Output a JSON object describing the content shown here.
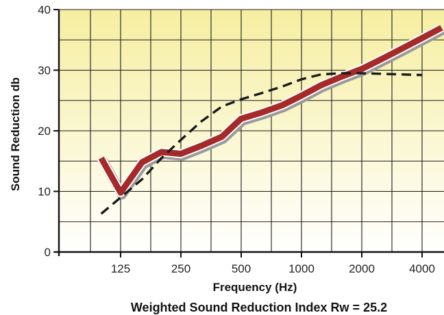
{
  "chart_data": {
    "type": "line",
    "title": "",
    "xlabel": "Frequency (Hz)",
    "ylabel": "Sound Reduction db",
    "footer": "Weighted Sound Reduction Index Rw = 25.2",
    "x_scale": "log",
    "x_ticks": [
      125,
      250,
      500,
      1000,
      2000,
      4000
    ],
    "x_tick_labels": [
      "125",
      "250",
      "500",
      "1000",
      "2000",
      "4000"
    ],
    "y_ticks": [
      0,
      10,
      20,
      30,
      40
    ],
    "y_tick_labels": [
      "0",
      "10",
      "20",
      "30",
      "40"
    ],
    "xlim": [
      63,
      4600
    ],
    "ylim": [
      0,
      40
    ],
    "grid": true,
    "background": [
      "#f6eea0",
      "#ffffff"
    ],
    "series": [
      {
        "style": "solid",
        "color": "#a52a2a",
        "x": [
          100,
          125,
          160,
          200,
          250,
          315,
          400,
          500,
          630,
          800,
          1000,
          1250,
          1600,
          2000,
          2500,
          3150,
          4000,
          5000
        ],
        "y": [
          15.5,
          9.8,
          14.8,
          16.5,
          16.2,
          17.5,
          19,
          22,
          23,
          24.2,
          25.8,
          27.5,
          29,
          30.2,
          31.8,
          33.5,
          35.3,
          37
        ]
      },
      {
        "style": "dashed",
        "color": "#1a1a1a",
        "x": [
          100,
          125,
          160,
          200,
          250,
          315,
          400,
          500,
          630,
          800,
          1000,
          1250,
          1600,
          2000,
          2500,
          3150,
          4000
        ],
        "y": [
          6.3,
          9,
          12,
          15.5,
          18.5,
          21.5,
          24,
          25.2,
          26.2,
          27.3,
          28.5,
          29.3,
          29.5,
          29.5,
          29.4,
          29.3,
          29.2
        ]
      }
    ]
  }
}
